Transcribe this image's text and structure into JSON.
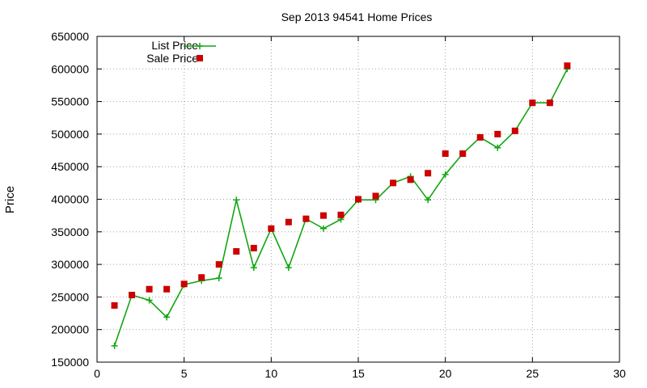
{
  "chart_data": {
    "type": "line",
    "title": "Sep 2013 94541 Home Prices",
    "xlabel": "",
    "ylabel": "Price",
    "xlim": [
      0,
      30
    ],
    "ylim": [
      150000,
      650000
    ],
    "xticks": [
      0,
      5,
      10,
      15,
      20,
      25,
      30
    ],
    "yticks": [
      150000,
      200000,
      250000,
      300000,
      350000,
      400000,
      450000,
      500000,
      550000,
      600000,
      650000
    ],
    "grid": true,
    "legend_position": "top-left",
    "series": [
      {
        "name": "List Price",
        "style": "line-with-plus-markers",
        "color": "#11a611",
        "x": [
          1,
          2,
          3,
          4,
          5,
          6,
          7,
          8,
          9,
          10,
          11,
          12,
          13,
          14,
          15,
          16,
          17,
          18,
          19,
          20,
          21,
          22,
          23,
          24,
          25,
          26,
          27
        ],
        "y": [
          175000,
          253000,
          245000,
          219000,
          269000,
          275000,
          279000,
          399000,
          295000,
          355000,
          295000,
          370000,
          355000,
          369000,
          399000,
          399000,
          425000,
          435000,
          399000,
          438000,
          470000,
          495000,
          479000,
          505000,
          548000,
          548000,
          600000
        ]
      },
      {
        "name": "Sale Price",
        "style": "square-markers",
        "color": "#cc0000",
        "x": [
          1,
          2,
          3,
          4,
          5,
          6,
          7,
          8,
          9,
          10,
          11,
          12,
          13,
          14,
          15,
          16,
          17,
          18,
          19,
          20,
          21,
          22,
          23,
          24,
          25,
          26,
          27
        ],
        "y": [
          237000,
          253000,
          262000,
          262000,
          270000,
          280000,
          300000,
          320000,
          325000,
          355000,
          365000,
          370000,
          375000,
          376000,
          400000,
          405000,
          425000,
          430000,
          440000,
          470000,
          470000,
          495000,
          500000,
          505000,
          548000,
          548000,
          605000
        ]
      }
    ]
  }
}
